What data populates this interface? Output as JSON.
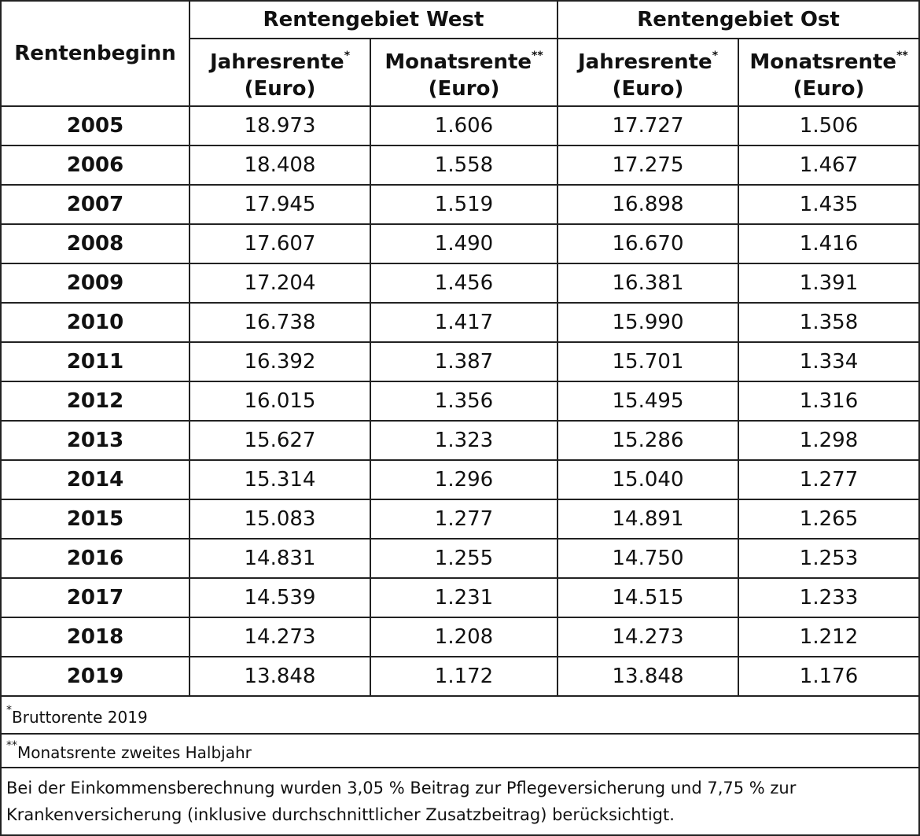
{
  "table": {
    "row_header": "Rentenbeginn",
    "groups": [
      "Rentengebiet West",
      "Rentengebiet Ost"
    ],
    "columns": [
      {
        "label": "Jahresrente",
        "mark": "*",
        "unit": "(Euro)"
      },
      {
        "label": "Monatsrente",
        "mark": "**",
        "unit": "(Euro)"
      },
      {
        "label": "Jahresrente",
        "mark": "*",
        "unit": "(Euro)"
      },
      {
        "label": "Monatsrente",
        "mark": "**",
        "unit": "(Euro)"
      }
    ],
    "rows": [
      [
        "2005",
        "18.973",
        "1.606",
        "17.727",
        "1.506"
      ],
      [
        "2006",
        "18.408",
        "1.558",
        "17.275",
        "1.467"
      ],
      [
        "2007",
        "17.945",
        "1.519",
        "16.898",
        "1.435"
      ],
      [
        "2008",
        "17.607",
        "1.490",
        "16.670",
        "1.416"
      ],
      [
        "2009",
        "17.204",
        "1.456",
        "16.381",
        "1.391"
      ],
      [
        "2010",
        "16.738",
        "1.417",
        "15.990",
        "1.358"
      ],
      [
        "2011",
        "16.392",
        "1.387",
        "15.701",
        "1.334"
      ],
      [
        "2012",
        "16.015",
        "1.356",
        "15.495",
        "1.316"
      ],
      [
        "2013",
        "15.627",
        "1.323",
        "15.286",
        "1.298"
      ],
      [
        "2014",
        "15.314",
        "1.296",
        "15.040",
        "1.277"
      ],
      [
        "2015",
        "15.083",
        "1.277",
        "14.891",
        "1.265"
      ],
      [
        "2016",
        "14.831",
        "1.255",
        "14.750",
        "1.253"
      ],
      [
        "2017",
        "14.539",
        "1.231",
        "14.515",
        "1.233"
      ],
      [
        "2018",
        "14.273",
        "1.208",
        "14.273",
        "1.212"
      ],
      [
        "2019",
        "13.848",
        "1.172",
        "13.848",
        "1.176"
      ]
    ],
    "footnotes": [
      {
        "mark": "*",
        "text": "Bruttorente 2019"
      },
      {
        "mark": "**",
        "text": "Monatsrente zweites Halbjahr"
      }
    ],
    "note": "Bei der Einkommensberechnung wurden 3,05 % Beitrag zur Pflegeversicherung und 7,75 % zur Krankenversicherung (inklusive durchschnittlicher Zusatzbeitrag) berücksichtigt."
  }
}
